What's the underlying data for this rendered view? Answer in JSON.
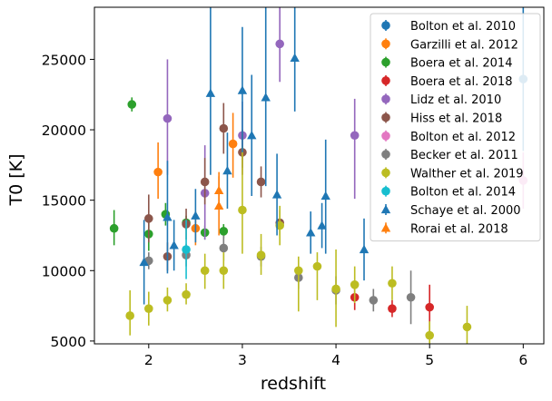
{
  "chart_data": {
    "type": "scatter",
    "title": "",
    "xlabel": "redshift",
    "ylabel": "T0 [K]",
    "xlim": [
      1.42,
      6.22
    ],
    "ylim": [
      4800,
      28700
    ],
    "xticks": [
      2,
      3,
      4,
      5,
      6
    ],
    "yticks": [
      5000,
      10000,
      15000,
      20000,
      25000
    ],
    "grid": false,
    "legend_position": "upper-right",
    "series": [
      {
        "name": "Bolton et al. 2010",
        "color": "#1f77b4",
        "marker": "circle",
        "points": [
          {
            "x": 6.0,
            "y": 23600,
            "lo": 18500,
            "hi": 28700
          }
        ]
      },
      {
        "name": "Garzilli et al. 2012",
        "color": "#ff7f0e",
        "marker": "circle",
        "points": [
          {
            "x": 2.1,
            "y": 17000,
            "lo": 15100,
            "hi": 19100
          },
          {
            "x": 2.5,
            "y": 13000,
            "lo": 11800,
            "hi": 14200
          },
          {
            "x": 2.9,
            "y": 19000,
            "lo": 16600,
            "hi": 21200
          }
        ]
      },
      {
        "name": "Boera et al. 2014",
        "color": "#2ca02c",
        "marker": "circle",
        "points": [
          {
            "x": 1.63,
            "y": 13000,
            "lo": 11800,
            "hi": 14300
          },
          {
            "x": 1.82,
            "y": 21800,
            "lo": 21300,
            "hi": 22300
          },
          {
            "x": 2.0,
            "y": 12600,
            "lo": 11400,
            "hi": 13800
          },
          {
            "x": 2.18,
            "y": 14000,
            "lo": 13200,
            "hi": 14800
          },
          {
            "x": 2.4,
            "y": 13400,
            "lo": 12900,
            "hi": 13900
          },
          {
            "x": 2.6,
            "y": 12700,
            "lo": 12200,
            "hi": 13200
          },
          {
            "x": 2.8,
            "y": 12800,
            "lo": 12300,
            "hi": 13300
          }
        ]
      },
      {
        "name": "Boera et al. 2018",
        "color": "#d62728",
        "marker": "circle",
        "points": [
          {
            "x": 4.2,
            "y": 8100,
            "lo": 7200,
            "hi": 9000
          },
          {
            "x": 4.6,
            "y": 7300,
            "lo": 6700,
            "hi": 7900
          },
          {
            "x": 5.0,
            "y": 7400,
            "lo": 5700,
            "hi": 9000
          }
        ]
      },
      {
        "name": "Lidz et al. 2010",
        "color": "#9467bd",
        "marker": "circle",
        "points": [
          {
            "x": 2.2,
            "y": 20800,
            "lo": 16800,
            "hi": 25000
          },
          {
            "x": 2.6,
            "y": 15500,
            "lo": 12200,
            "hi": 18900
          },
          {
            "x": 3.0,
            "y": 19600,
            "lo": 17300,
            "hi": 22000
          },
          {
            "x": 3.4,
            "y": 26100,
            "lo": 23400,
            "hi": 28700
          },
          {
            "x": 4.2,
            "y": 19600,
            "lo": 15100,
            "hi": 22200
          }
        ]
      },
      {
        "name": "Hiss et al. 2018",
        "color": "#8c564b",
        "marker": "circle",
        "points": [
          {
            "x": 2.0,
            "y": 13700,
            "lo": 12000,
            "hi": 15400
          },
          {
            "x": 2.2,
            "y": 11000,
            "lo": 10000,
            "hi": 12000
          },
          {
            "x": 2.4,
            "y": 13300,
            "lo": 12200,
            "hi": 14400
          },
          {
            "x": 2.6,
            "y": 16300,
            "lo": 14700,
            "hi": 18000
          },
          {
            "x": 2.8,
            "y": 20100,
            "lo": 18300,
            "hi": 21900
          },
          {
            "x": 3.0,
            "y": 18400,
            "lo": 16800,
            "hi": 20000
          },
          {
            "x": 3.2,
            "y": 16300,
            "lo": 15200,
            "hi": 17400
          },
          {
            "x": 3.4,
            "y": 13400,
            "lo": 12500,
            "hi": 14300
          }
        ]
      },
      {
        "name": "Bolton et al. 2012",
        "color": "#e377c2",
        "marker": "circle",
        "points": [
          {
            "x": 6.0,
            "y": 16400,
            "lo": 14400,
            "hi": 18400
          }
        ]
      },
      {
        "name": "Becker et al. 2011",
        "color": "#7f7f7f",
        "marker": "circle",
        "points": [
          {
            "x": 2.0,
            "y": 10700,
            "lo": 10100,
            "hi": 11300
          },
          {
            "x": 2.4,
            "y": 11100,
            "lo": 10300,
            "hi": 11900
          },
          {
            "x": 2.8,
            "y": 11600,
            "lo": 10700,
            "hi": 12500
          },
          {
            "x": 3.2,
            "y": 11000,
            "lo": 10300,
            "hi": 11700
          },
          {
            "x": 3.6,
            "y": 9500,
            "lo": 8700,
            "hi": 10300
          },
          {
            "x": 4.0,
            "y": 8600,
            "lo": 7600,
            "hi": 9600
          },
          {
            "x": 4.4,
            "y": 7900,
            "lo": 7100,
            "hi": 8700
          },
          {
            "x": 4.8,
            "y": 8100,
            "lo": 6200,
            "hi": 10000
          }
        ]
      },
      {
        "name": "Walther et al. 2019",
        "color": "#bcbd22",
        "marker": "circle",
        "points": [
          {
            "x": 1.8,
            "y": 6800,
            "lo": 5400,
            "hi": 8600
          },
          {
            "x": 2.0,
            "y": 7300,
            "lo": 6100,
            "hi": 8500
          },
          {
            "x": 2.2,
            "y": 7900,
            "lo": 7100,
            "hi": 8800
          },
          {
            "x": 2.4,
            "y": 8300,
            "lo": 7600,
            "hi": 9100
          },
          {
            "x": 2.6,
            "y": 10000,
            "lo": 8700,
            "hi": 11200
          },
          {
            "x": 2.8,
            "y": 10000,
            "lo": 8700,
            "hi": 11300
          },
          {
            "x": 3.0,
            "y": 14300,
            "lo": 11200,
            "hi": 18800
          },
          {
            "x": 3.2,
            "y": 11100,
            "lo": 9700,
            "hi": 12600
          },
          {
            "x": 3.4,
            "y": 13200,
            "lo": 11800,
            "hi": 14600
          },
          {
            "x": 3.6,
            "y": 10000,
            "lo": 7100,
            "hi": 11000
          },
          {
            "x": 3.8,
            "y": 10300,
            "lo": 7900,
            "hi": 11300
          },
          {
            "x": 4.0,
            "y": 8700,
            "lo": 6000,
            "hi": 11500
          },
          {
            "x": 4.2,
            "y": 9000,
            "lo": 7700,
            "hi": 10300
          },
          {
            "x": 4.6,
            "y": 9100,
            "lo": 7900,
            "hi": 10300
          },
          {
            "x": 5.0,
            "y": 5400,
            "lo": 4800,
            "hi": 6400
          },
          {
            "x": 5.4,
            "y": 6000,
            "lo": 4800,
            "hi": 7500
          }
        ]
      },
      {
        "name": "Bolton et al. 2014",
        "color": "#17becf",
        "marker": "circle",
        "points": [
          {
            "x": 2.4,
            "y": 11500,
            "lo": 9400,
            "hi": 13600
          }
        ]
      },
      {
        "name": "Schaye et al. 2000",
        "color": "#1f77b4",
        "marker": "triangle",
        "points": [
          {
            "x": 1.95,
            "y": 10600,
            "lo": 7600,
            "hi": 13600
          },
          {
            "x": 2.2,
            "y": 13800,
            "lo": 9800,
            "hi": 17800
          },
          {
            "x": 2.27,
            "y": 11800,
            "lo": 10000,
            "hi": 13600
          },
          {
            "x": 2.5,
            "y": 13900,
            "lo": 12000,
            "hi": 15800
          },
          {
            "x": 2.66,
            "y": 22600,
            "lo": 16800,
            "hi": 28700
          },
          {
            "x": 2.84,
            "y": 17100,
            "lo": 14400,
            "hi": 19800
          },
          {
            "x": 3.0,
            "y": 22800,
            "lo": 18400,
            "hi": 27300
          },
          {
            "x": 3.1,
            "y": 19600,
            "lo": 15300,
            "hi": 23900
          },
          {
            "x": 3.25,
            "y": 22300,
            "lo": 16000,
            "hi": 28700
          },
          {
            "x": 3.37,
            "y": 15400,
            "lo": 12500,
            "hi": 18300
          },
          {
            "x": 3.56,
            "y": 25100,
            "lo": 21300,
            "hi": 28700
          },
          {
            "x": 3.73,
            "y": 12700,
            "lo": 11200,
            "hi": 14200
          },
          {
            "x": 3.85,
            "y": 13200,
            "lo": 11600,
            "hi": 14800
          },
          {
            "x": 3.89,
            "y": 15300,
            "lo": 11200,
            "hi": 19300
          },
          {
            "x": 4.3,
            "y": 11500,
            "lo": 9300,
            "hi": 13700
          }
        ]
      },
      {
        "name": "Rorai et al. 2018",
        "color": "#ff7f0e",
        "marker": "triangle",
        "points": [
          {
            "x": 2.75,
            "y": 14600,
            "lo": 12500,
            "hi": 16700
          },
          {
            "x": 2.75,
            "y": 15700,
            "lo": 14400,
            "hi": 17000
          }
        ]
      }
    ]
  }
}
